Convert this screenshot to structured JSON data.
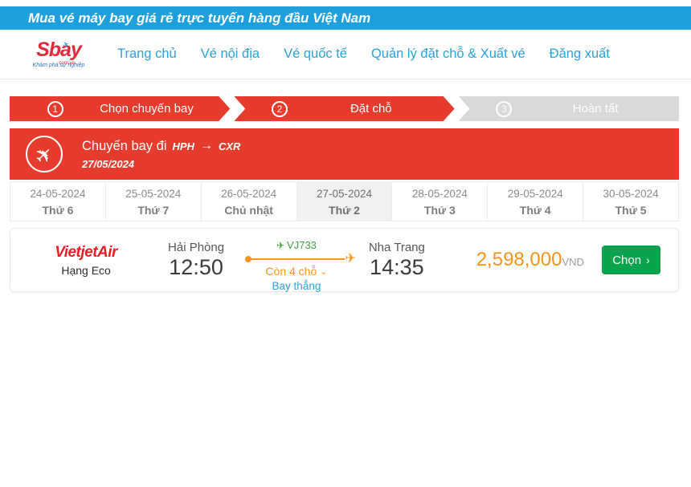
{
  "banner": {
    "text": "Mua vé máy bay giá rẻ trực tuyến hàng đầu Việt Nam"
  },
  "header": {
    "logo": {
      "brand": "Sbay",
      "domain": "com.vn",
      "tagline": "Khám phá sự nghiệp"
    },
    "nav": [
      {
        "label": "Trang chủ"
      },
      {
        "label": "Vé nội địa"
      },
      {
        "label": "Vé quốc tế"
      },
      {
        "label": "Quản lý đặt chỗ & Xuất vé"
      },
      {
        "label": "Đăng xuất"
      }
    ]
  },
  "steps": [
    {
      "number": "1",
      "label": "Chọn chuyến bay",
      "state": "active"
    },
    {
      "number": "2",
      "label": "Đặt chỗ",
      "state": "active"
    },
    {
      "number": "3",
      "label": "Hoàn tất",
      "state": "inactive"
    }
  ],
  "flight_banner": {
    "title": "Chuyến bay đi",
    "from_code": "HPH",
    "arrow": "→",
    "to_code": "CXR",
    "date": "27/05/2024"
  },
  "date_tabs": [
    {
      "date": "24-05-2024",
      "day": "Thứ 6",
      "selected": false
    },
    {
      "date": "25-05-2024",
      "day": "Thứ 7",
      "selected": false
    },
    {
      "date": "26-05-2024",
      "day": "Chủ nhật",
      "selected": false
    },
    {
      "date": "27-05-2024",
      "day": "Thứ 2",
      "selected": true
    },
    {
      "date": "28-05-2024",
      "day": "Thứ 3",
      "selected": false
    },
    {
      "date": "29-05-2024",
      "day": "Thứ 4",
      "selected": false
    },
    {
      "date": "30-05-2024",
      "day": "Thứ 5",
      "selected": false
    }
  ],
  "flight": {
    "airline": "VietjetAir",
    "fare_class": "Hạng Eco",
    "departure": {
      "city": "Hải Phòng",
      "time": "12:50"
    },
    "arrival": {
      "city": "Nha Trang",
      "time": "14:35"
    },
    "flight_number": "VJ733",
    "seats_left": "Còn 4 chỗ",
    "stop_type": "Bay thẳng",
    "price": "2,598,000",
    "currency": "VND",
    "select_label": "Chọn"
  },
  "colors": {
    "banner_blue": "#1ea0dc",
    "link_blue": "#2aa2db",
    "primary_red": "#e73b2e",
    "inactive_gray": "#d9d9d9",
    "accent_orange": "#f7941d",
    "flight_green": "#3fa142",
    "button_green": "#09a34e",
    "airline_red": "#ec1c24"
  }
}
